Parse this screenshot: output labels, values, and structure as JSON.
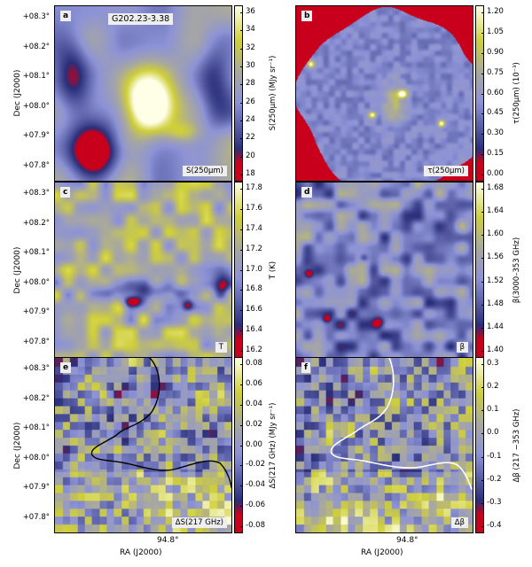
{
  "chart_data": [
    {
      "type": "heatmap",
      "panel": "a",
      "title": "G202.23-3.38",
      "map_label": "S(250μm)",
      "cbar_title": "S(250μm) (MJy sr⁻¹)",
      "cbar_ticks": [
        "36",
        "34",
        "32",
        "30",
        "28",
        "26",
        "24",
        "22",
        "20",
        "18"
      ],
      "cmap": "hot",
      "range": [
        18,
        37
      ]
    },
    {
      "type": "heatmap",
      "panel": "b",
      "map_label": "τ(250μm)",
      "cbar_title": "τ(250μm) (10⁻³)",
      "cbar_ticks": [
        "1.20",
        "1.05",
        "0.90",
        "0.75",
        "0.60",
        "0.45",
        "0.30",
        "0.15",
        "0.00"
      ],
      "cmap": "hot",
      "range": [
        -0.05,
        1.22
      ]
    },
    {
      "type": "heatmap",
      "panel": "c",
      "map_label": "T",
      "cbar_title": "T (K)",
      "cbar_ticks": [
        "17.8",
        "17.6",
        "17.4",
        "17.2",
        "17.0",
        "16.8",
        "16.6",
        "16.4",
        "16.2"
      ],
      "cmap": "cool-rev",
      "range": [
        16.2,
        17.8
      ]
    },
    {
      "type": "heatmap",
      "panel": "d",
      "map_label": "β",
      "cbar_title": "β(3000–353 GHz)",
      "cbar_ticks": [
        "1.68",
        "1.64",
        "1.60",
        "1.56",
        "1.52",
        "1.48",
        "1.44",
        "1.40"
      ],
      "cmap": "hot",
      "range": [
        1.38,
        1.7
      ]
    },
    {
      "type": "heatmap",
      "panel": "e",
      "map_label": "ΔS(217 GHz)",
      "cbar_title": "ΔS(217 GHz) (MJy sr⁻¹)",
      "cbar_ticks": [
        "0.08",
        "0.06",
        "0.04",
        "0.02",
        "0.00",
        "-0.02",
        "-0.04",
        "-0.06",
        "-0.08"
      ],
      "cmap": "hot",
      "range": [
        -0.08,
        0.08
      ]
    },
    {
      "type": "heatmap",
      "panel": "f",
      "map_label": "Δβ",
      "cbar_title": "Δβ (217 −353 GHz)",
      "cbar_ticks": [
        "0.3",
        "0.2",
        "0.1",
        "0.0",
        "-0.1",
        "-0.2",
        "-0.3",
        "-0.4"
      ],
      "cmap": "hot",
      "range": [
        -0.4,
        0.35
      ]
    }
  ],
  "axes": {
    "ylabel": "Dec (J2000)",
    "xlabel": "RA (J2000)",
    "yticks": [
      "+08.3°",
      "+08.2°",
      "+08.1°",
      "+08.0°",
      "+07.9°",
      "+07.8°"
    ],
    "xtick": "94.8°"
  },
  "colors": {
    "low": "#c8001c",
    "mid_dark": "#2a2f7a",
    "mid": "#8d93d6",
    "gray": "#a8a8a0",
    "high": "#cfcf3a",
    "peak": "#ffffe8",
    "contour_e": "#000000",
    "contour_f": "#ffffff"
  }
}
